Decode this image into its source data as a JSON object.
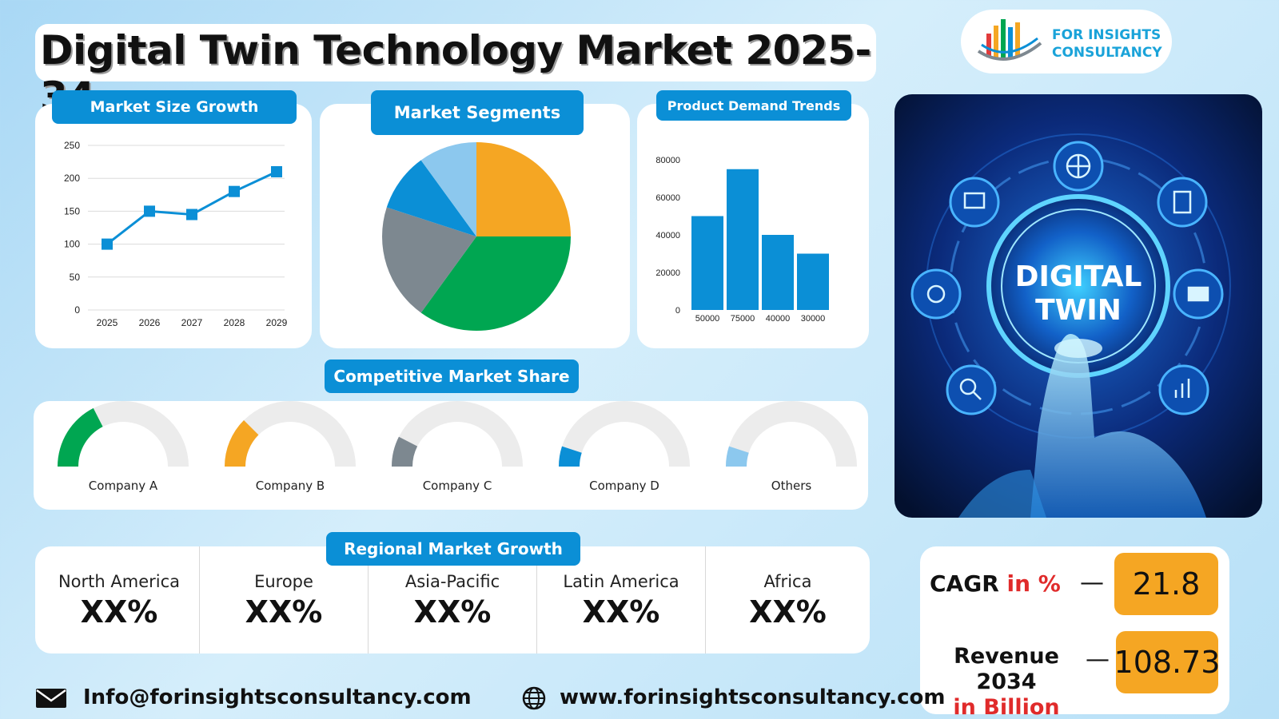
{
  "header": {
    "title": "Digital Twin Technology Market 2025-34",
    "logo_line1": "FOR INSIGHTS",
    "logo_line2": "CONSULTANCY"
  },
  "sections": {
    "market_size": "Market Size Growth",
    "segments": "Market Segments",
    "demand": "Product Demand Trends",
    "competitive": "Competitive Market Share",
    "regional": "Regional Market Growth"
  },
  "hero": {
    "text_line1": "DIGITAL",
    "text_line2": "TWIN"
  },
  "chart_data": [
    {
      "type": "line",
      "title": "Market Size Growth",
      "x": [
        "2025",
        "2026",
        "2027",
        "2028",
        "2029"
      ],
      "values": [
        100,
        150,
        145,
        180,
        210
      ],
      "ylim": [
        0,
        250
      ],
      "yticks": [
        "0",
        "50",
        "100",
        "150",
        "200",
        "250"
      ],
      "grid": true,
      "color": "#0b8fd6"
    },
    {
      "type": "pie",
      "title": "Market Segments",
      "values": [
        25,
        35,
        20,
        10,
        10
      ],
      "colors": [
        "#f5a623",
        "#00a651",
        "#7d8890",
        "#0b8fd6",
        "#8cc8ee"
      ]
    },
    {
      "type": "bar",
      "title": "Product Demand Trends",
      "categories": [
        "50000",
        "75000",
        "40000",
        "30000"
      ],
      "values": [
        50000,
        75000,
        40000,
        30000
      ],
      "ylim": [
        0,
        80000
      ],
      "yticks": [
        "0",
        "20000",
        "40000",
        "60000",
        "80000"
      ],
      "color": "#0b8fd6"
    },
    {
      "type": "gauge",
      "title": "Competitive Market Share",
      "categories": [
        "Company A",
        "Company B",
        "Company C",
        "Company D",
        "Others"
      ],
      "values": [
        0.35,
        0.25,
        0.15,
        0.1,
        0.1
      ],
      "colors": [
        "#00a651",
        "#f5a623",
        "#7d8890",
        "#0b8fd6",
        "#8cc8ee"
      ]
    }
  ],
  "regions": [
    {
      "name": "North America",
      "value": "XX%"
    },
    {
      "name": "Europe",
      "value": "XX%"
    },
    {
      "name": "Asia-Pacific",
      "value": "XX%"
    },
    {
      "name": "Latin America",
      "value": "XX%"
    },
    {
      "name": "Africa",
      "value": "XX%"
    }
  ],
  "stats": {
    "cagr_label": "CAGR",
    "cagr_unit": "in %",
    "cagr_value": "21.8",
    "revenue_label": "Revenue 2034",
    "revenue_unit": "in Billion",
    "revenue_value": "108.73",
    "dash": "—"
  },
  "footer": {
    "email": "Info@forinsightsconsultancy.com",
    "website": "www.forinsightsconsultancy.com"
  }
}
